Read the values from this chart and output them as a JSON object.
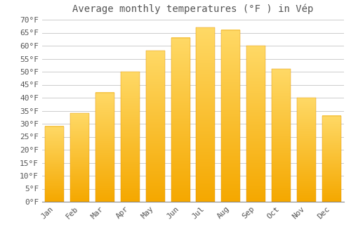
{
  "title": "Average monthly temperatures (°F ) in Vép",
  "months": [
    "Jan",
    "Feb",
    "Mar",
    "Apr",
    "May",
    "Jun",
    "Jul",
    "Aug",
    "Sep",
    "Oct",
    "Nov",
    "Dec"
  ],
  "values": [
    29,
    34,
    42,
    50,
    58,
    63,
    67,
    66,
    60,
    51,
    40,
    33
  ],
  "bar_color_top": "#F5A800",
  "bar_color_bottom": "#FFD966",
  "background_color": "#FFFFFF",
  "grid_color": "#CCCCCC",
  "text_color": "#555555",
  "ylim": [
    0,
    70
  ],
  "title_fontsize": 10,
  "tick_fontsize": 8,
  "font_family": "monospace"
}
